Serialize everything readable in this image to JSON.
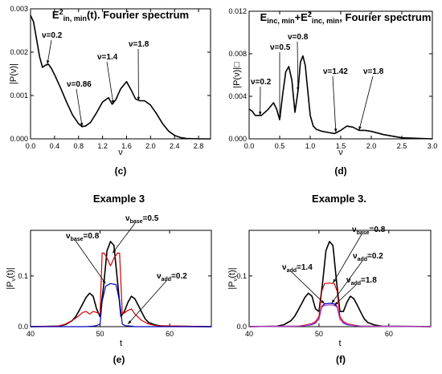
{
  "chart_data": [
    {
      "type": "line",
      "panel": "c",
      "caption": "(c)",
      "title_parts": [
        {
          "t": "E"
        },
        {
          "t": "2",
          "sup": true
        },
        {
          "t": "in, min",
          "sub": true
        },
        {
          "t": "(t). Fourier spectrum"
        }
      ],
      "xlabel": "ν",
      "ylabel": "|P(ν)|",
      "xlim": [
        0,
        3.0
      ],
      "ylim": [
        0,
        0.003
      ],
      "xticks": [
        "0.0",
        "0.4",
        "0.8",
        "1.2",
        "1.6",
        "2.0",
        "2.4",
        "2.8"
      ],
      "xtick_values": [
        0,
        0.4,
        0.8,
        1.2,
        1.6,
        2.0,
        2.4,
        2.8
      ],
      "yticks": [
        "0.000",
        "0.001",
        "0.002",
        "0.003"
      ],
      "ytick_values": [
        0,
        0.001,
        0.002,
        0.003
      ],
      "series": [
        {
          "color": "#000000",
          "x": [
            0.0,
            0.05,
            0.1,
            0.15,
            0.2,
            0.25,
            0.3,
            0.35,
            0.4,
            0.5,
            0.6,
            0.7,
            0.8,
            0.86,
            0.92,
            1.0,
            1.1,
            1.2,
            1.3,
            1.36,
            1.42,
            1.5,
            1.6,
            1.68,
            1.75,
            1.82,
            1.9,
            2.0,
            2.1,
            2.2,
            2.3,
            2.4,
            2.5,
            2.6,
            2.8,
            3.0
          ],
          "y": [
            0.00285,
            0.0027,
            0.0023,
            0.0019,
            0.00165,
            0.0017,
            0.00172,
            0.00162,
            0.00148,
            0.00118,
            0.00085,
            0.00055,
            0.00035,
            0.00028,
            0.0003,
            0.00038,
            0.0006,
            0.00085,
            0.00095,
            0.0008,
            0.0009,
            0.00115,
            0.00132,
            0.00112,
            0.00092,
            0.00088,
            0.00088,
            0.00078,
            0.00058,
            0.00035,
            0.00018,
            8e-05,
            3e-05,
            1e-05,
            0.0,
            0.0
          ]
        }
      ],
      "annotations": [
        {
          "text": "ν=0.2",
          "x": 0.28,
          "y": 0.00172
        },
        {
          "text": "ν=0.86",
          "x": 0.86,
          "y": 0.00028
        },
        {
          "text": "ν=1.4",
          "x": 1.38,
          "y": 0.0008
        },
        {
          "text": "ν=1.8",
          "x": 1.8,
          "y": 0.00088
        }
      ]
    },
    {
      "type": "line",
      "panel": "d",
      "caption": "(d)",
      "title_parts": [
        {
          "t": "E"
        },
        {
          "t": "inc, min",
          "sub": true
        },
        {
          "t": "+E"
        },
        {
          "t": "2",
          "sup": true
        },
        {
          "t": "inc, min",
          "sub": true
        },
        {
          "t": ", Fourier spectrum"
        }
      ],
      "xlabel": "ν",
      "ylabel": "|P(ν)|□",
      "xlim": [
        0,
        3.0
      ],
      "ylim": [
        0,
        0.012
      ],
      "xticks": [
        "0.0",
        "0.5",
        "1.0",
        "1.5",
        "2.0",
        "2.5",
        "3.0"
      ],
      "xtick_values": [
        0,
        0.5,
        1.0,
        1.5,
        2.0,
        2.5,
        3.0
      ],
      "yticks": [
        "0.000",
        "0.004",
        "0.008",
        "0.012"
      ],
      "ytick_values": [
        0,
        0.004,
        0.008,
        0.012
      ],
      "series": [
        {
          "color": "#000000",
          "x": [
            0.0,
            0.05,
            0.1,
            0.2,
            0.3,
            0.4,
            0.45,
            0.5,
            0.55,
            0.6,
            0.65,
            0.7,
            0.75,
            0.8,
            0.84,
            0.88,
            0.92,
            0.96,
            1.0,
            1.05,
            1.1,
            1.2,
            1.3,
            1.4,
            1.5,
            1.6,
            1.7,
            1.8,
            1.9,
            2.0,
            2.2,
            2.4,
            2.5,
            3.0
          ],
          "y": [
            0.0028,
            0.0026,
            0.0022,
            0.0022,
            0.0027,
            0.0034,
            0.0028,
            0.0018,
            0.0042,
            0.0063,
            0.0068,
            0.0055,
            0.0025,
            0.0045,
            0.0072,
            0.0078,
            0.0069,
            0.0045,
            0.0022,
            0.0012,
            0.0009,
            0.0007,
            0.0006,
            0.0005,
            0.0008,
            0.0012,
            0.0011,
            0.0008,
            0.0008,
            0.0007,
            0.0004,
            0.0002,
            0.0001,
            0.0
          ]
        }
      ],
      "annotations": [
        {
          "text": "ν=0.2",
          "x": 0.18,
          "y": 0.0022
        },
        {
          "text": "ν=0.5",
          "x": 0.5,
          "y": 0.0018
        },
        {
          "text": "ν=0.8",
          "x": 0.8,
          "y": 0.0045
        },
        {
          "text": "ν=1.42",
          "x": 1.42,
          "y": 0.0006
        },
        {
          "text": "ν=1.8",
          "x": 1.8,
          "y": 0.0008
        }
      ]
    },
    {
      "type": "line",
      "panel": "e",
      "caption": "(e)",
      "title_parts": [
        {
          "t": "Example 3"
        }
      ],
      "xlabel": "t",
      "ylabel_parts": [
        {
          "t": "|P"
        },
        {
          "t": "ν",
          "sub": true
        },
        {
          "t": "(t)|"
        }
      ],
      "xlim": [
        40,
        66
      ],
      "ylim": [
        0,
        0.19
      ],
      "xticks": [
        "40",
        "50",
        "60"
      ],
      "xtick_values": [
        40,
        50,
        60
      ],
      "yticks": [
        "0.0",
        "0.1"
      ],
      "ytick_values": [
        0,
        0.1
      ],
      "series": [
        {
          "color": "#000000",
          "x": [
            40,
            44,
            45,
            46,
            46.5,
            47,
            47.5,
            48,
            48.5,
            49,
            49.5,
            50,
            50.5,
            51,
            51.5,
            52,
            52.5,
            53,
            53.5,
            54,
            54.5,
            55,
            55.5,
            56,
            56.5,
            57,
            58,
            59,
            66
          ],
          "y": [
            0,
            0.001,
            0.004,
            0.012,
            0.02,
            0.032,
            0.045,
            0.058,
            0.066,
            0.06,
            0.035,
            0.02,
            0.08,
            0.15,
            0.168,
            0.16,
            0.09,
            0.02,
            0.03,
            0.048,
            0.06,
            0.055,
            0.042,
            0.028,
            0.015,
            0.008,
            0.003,
            0.001,
            0
          ]
        },
        {
          "color": "#d00000",
          "x": [
            40,
            44,
            45,
            46,
            47,
            47.5,
            48,
            48.5,
            49,
            49.5,
            50,
            50.3,
            50.6,
            51,
            51.5,
            52,
            52.5,
            52.8,
            53.2,
            53.6,
            54,
            54.5,
            55,
            56,
            57,
            58,
            66
          ],
          "y": [
            0,
            0.001,
            0.005,
            0.012,
            0.022,
            0.028,
            0.03,
            0.025,
            0.03,
            0.028,
            0.025,
            0.145,
            0.145,
            0.135,
            0.12,
            0.135,
            0.145,
            0.145,
            0.025,
            0.028,
            0.032,
            0.035,
            0.025,
            0.012,
            0.005,
            0.002,
            0
          ]
        },
        {
          "color": "#0000c0",
          "x": [
            40,
            48,
            49,
            49.5,
            50,
            50.3,
            50.8,
            51.5,
            52.3,
            52.8,
            53.2,
            53.6,
            54.5,
            55,
            56,
            66
          ],
          "y": [
            0,
            0,
            0.001,
            0.002,
            0.005,
            0.05,
            0.08,
            0.085,
            0.083,
            0.05,
            0.005,
            0.002,
            0.001,
            0,
            0,
            0
          ]
        }
      ],
      "annotations": [
        {
          "parts": [
            {
              "t": "ν"
            },
            {
              "t": "base",
              "sub": true
            },
            {
              "t": "=0.5"
            }
          ],
          "x": 51.8,
          "y": 0.145
        },
        {
          "parts": [
            {
              "t": "ν"
            },
            {
              "t": "base",
              "sub": true
            },
            {
              "t": "=0.8"
            }
          ],
          "x": 50.8,
          "y": 0.085
        },
        {
          "parts": [
            {
              "t": "ν"
            },
            {
              "t": "add",
              "sub": true
            },
            {
              "t": "=0.2"
            }
          ],
          "x": 54,
          "y": 0.005
        }
      ]
    },
    {
      "type": "line",
      "panel": "f",
      "caption": "(f)",
      "title_parts": [
        {
          "t": "Example 3."
        }
      ],
      "xlabel": "t",
      "ylabel_parts": [
        {
          "t": "|P"
        },
        {
          "t": "ν",
          "sub": true
        },
        {
          "t": "(t)|"
        }
      ],
      "xlim": [
        40,
        66
      ],
      "ylim": [
        0,
        0.19
      ],
      "xticks": [
        "40",
        "50",
        "60"
      ],
      "xtick_values": [
        40,
        50,
        60
      ],
      "yticks": [
        "0.0",
        "0.1"
      ],
      "ytick_values": [
        0,
        0.1
      ],
      "series": [
        {
          "color": "#000000",
          "x": [
            40,
            44,
            45,
            46,
            46.5,
            47,
            47.5,
            48,
            48.5,
            49,
            49.5,
            50,
            50.5,
            51,
            51.5,
            52,
            52.5,
            53,
            53.5,
            54,
            54.5,
            55,
            55.5,
            56,
            56.5,
            57,
            58,
            59,
            66
          ],
          "y": [
            0,
            0.001,
            0.004,
            0.012,
            0.02,
            0.032,
            0.045,
            0.058,
            0.066,
            0.06,
            0.035,
            0.03,
            0.085,
            0.15,
            0.168,
            0.16,
            0.09,
            0.03,
            0.03,
            0.048,
            0.06,
            0.055,
            0.042,
            0.028,
            0.015,
            0.008,
            0.003,
            0.001,
            0
          ]
        },
        {
          "color": "#d00000",
          "x": [
            40,
            47,
            48,
            49,
            49.5,
            50,
            50.4,
            50.8,
            51.5,
            52.2,
            52.6,
            53,
            53.5,
            54,
            55,
            56,
            66
          ],
          "y": [
            0,
            0.001,
            0.003,
            0.006,
            0.01,
            0.02,
            0.07,
            0.085,
            0.086,
            0.085,
            0.07,
            0.02,
            0.01,
            0.006,
            0.003,
            0.001,
            0
          ]
        },
        {
          "color": "#0000c0",
          "x": [
            40,
            47,
            48,
            49,
            49.5,
            50,
            50.4,
            50.8,
            51.5,
            52.2,
            52.6,
            53,
            53.5,
            54,
            55,
            56,
            66
          ],
          "y": [
            0,
            0.001,
            0.002,
            0.004,
            0.007,
            0.015,
            0.04,
            0.045,
            0.046,
            0.045,
            0.04,
            0.015,
            0.007,
            0.004,
            0.002,
            0.001,
            0
          ]
        },
        {
          "color": "#c040c0",
          "x": [
            40,
            47,
            48,
            49,
            49.5,
            50,
            50.4,
            50.8,
            51.5,
            52.2,
            52.6,
            53,
            53.5,
            54,
            55,
            56,
            66
          ],
          "y": [
            0,
            0.001,
            0.002,
            0.005,
            0.008,
            0.014,
            0.038,
            0.042,
            0.043,
            0.042,
            0.038,
            0.014,
            0.008,
            0.005,
            0.002,
            0.001,
            0
          ]
        }
      ],
      "annotations": [
        {
          "parts": [
            {
              "t": "ν"
            },
            {
              "t": "base",
              "sub": true
            },
            {
              "t": "=0.8"
            }
          ],
          "x": 52,
          "y": 0.086
        },
        {
          "parts": [
            {
              "t": "ν"
            },
            {
              "t": "add",
              "sub": true
            },
            {
              "t": "=1.4"
            }
          ],
          "x": 50.8,
          "y": 0.045
        },
        {
          "parts": [
            {
              "t": "ν"
            },
            {
              "t": "add",
              "sub": true
            },
            {
              "t": "=0.2"
            }
          ],
          "x": 51.8,
          "y": 0.046
        },
        {
          "parts": [
            {
              "t": "ν"
            },
            {
              "t": "add",
              "sub": true
            },
            {
              "t": "=1.8"
            }
          ],
          "x": 52.2,
          "y": 0.042
        }
      ]
    }
  ]
}
